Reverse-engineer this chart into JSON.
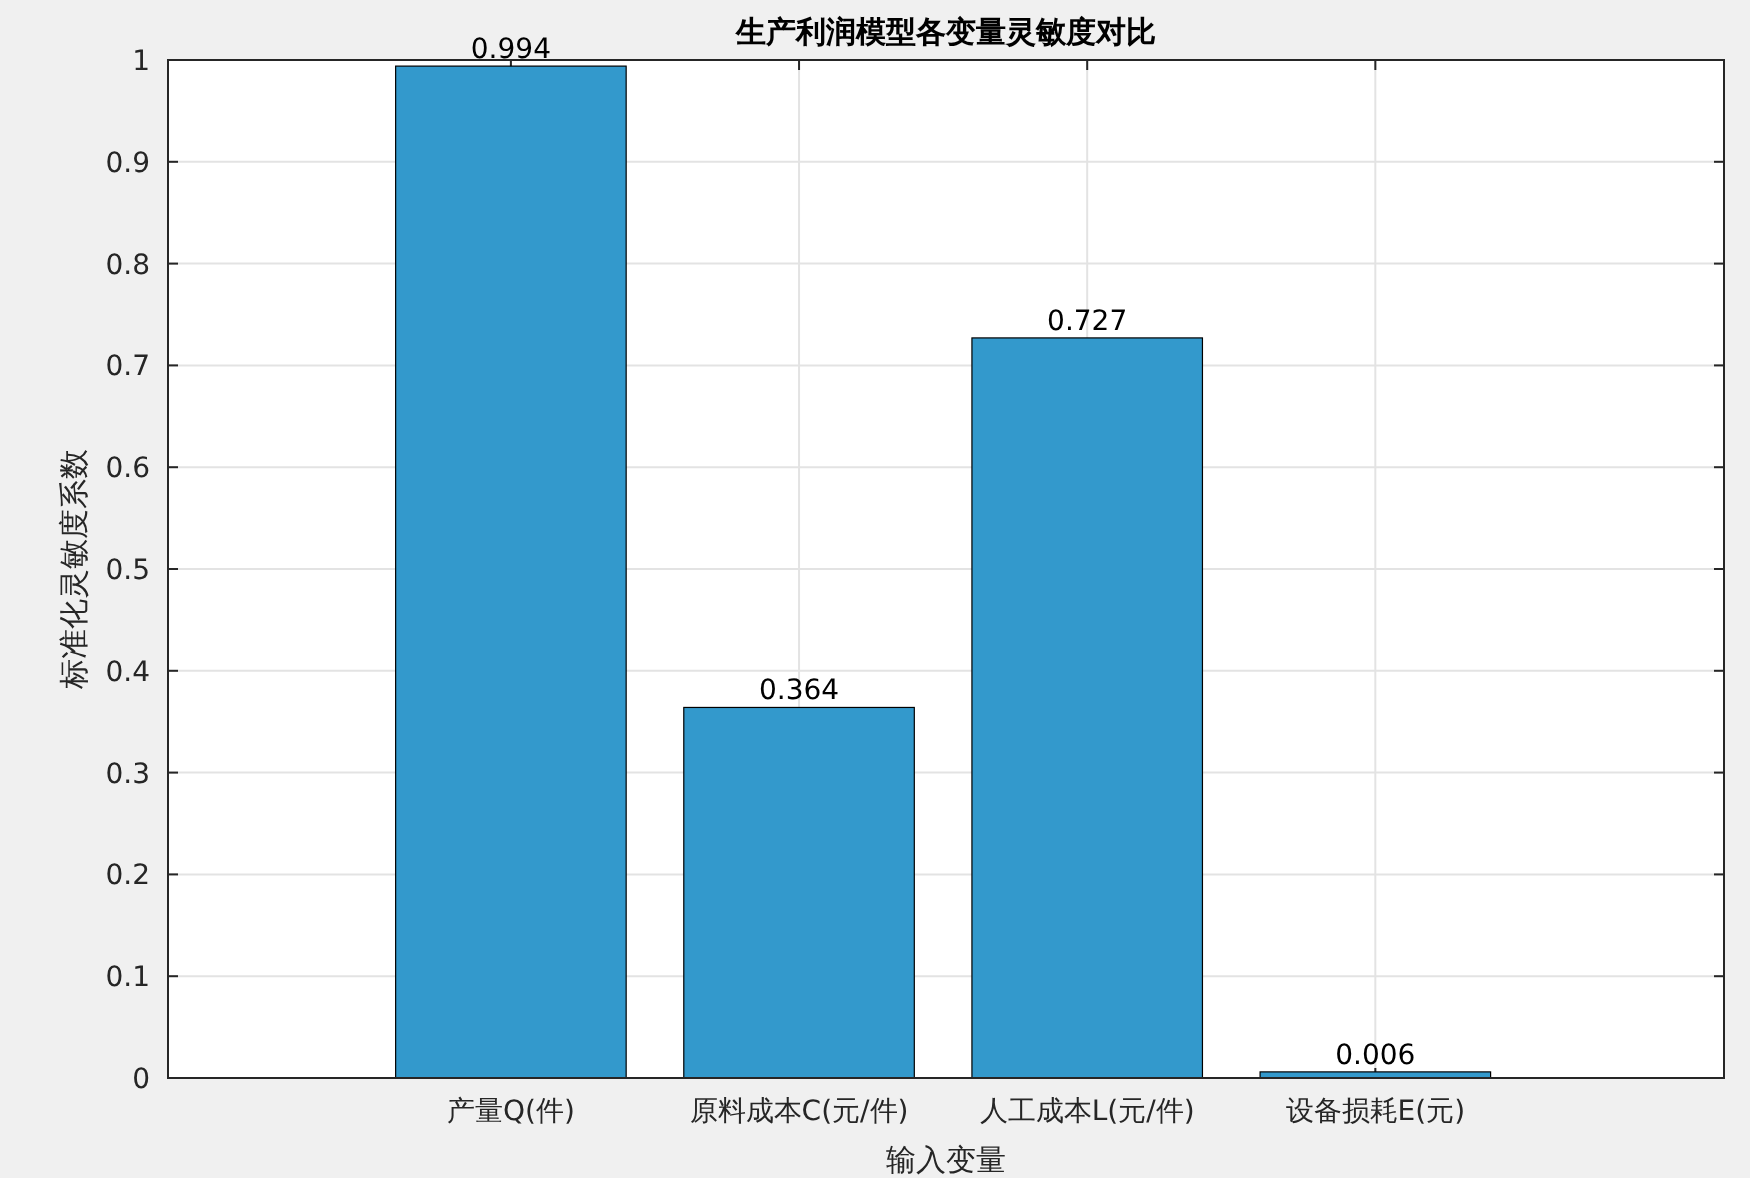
{
  "chart_data": {
    "type": "bar",
    "title": "生产利润模型各变量灵敏度对比",
    "xlabel": "输入变量",
    "ylabel": "标准化灵敏度系数",
    "categories": [
      "产量Q(件)",
      "原料成本C(元/件)",
      "人工成本L(元/件)",
      "设备损耗E(元)"
    ],
    "values": [
      0.994,
      0.364,
      0.727,
      0.006
    ],
    "color": "#3399cc",
    "ylim": [
      0,
      1
    ],
    "yticks": [
      0,
      0.1,
      0.2,
      0.3,
      0.4,
      0.5,
      0.6,
      0.7,
      0.8,
      0.9,
      1
    ],
    "grid": true,
    "data_labels": true
  }
}
